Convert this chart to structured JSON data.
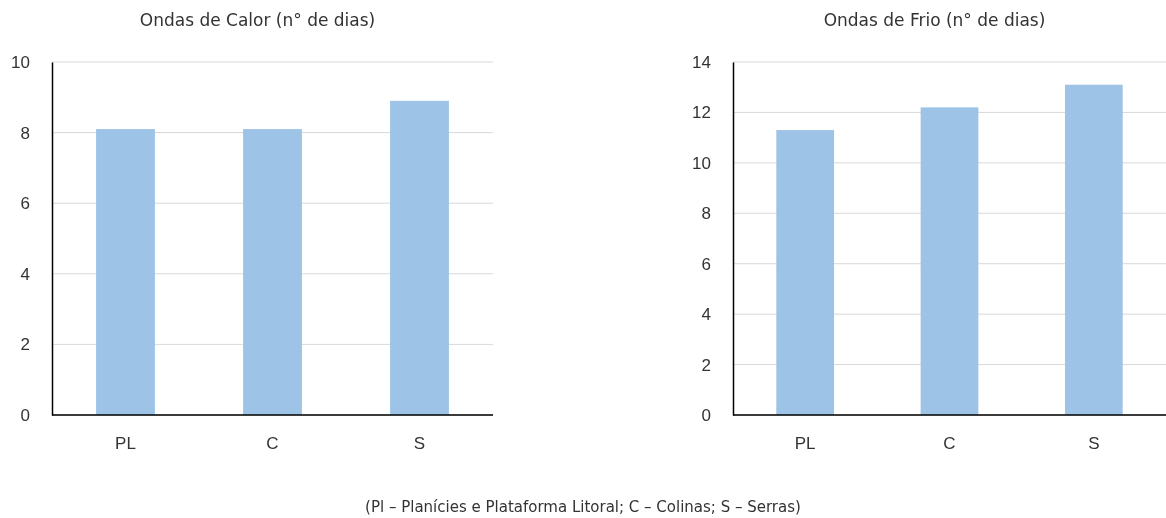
{
  "chart_data": [
    {
      "type": "bar",
      "title": "Ondas de Calor (n° de dias)",
      "categories": [
        "PL",
        "C",
        "S"
      ],
      "values": [
        8.1,
        8.1,
        8.9
      ],
      "color": "#9dc3e6",
      "ylim": [
        0,
        10
      ],
      "yticks": [
        0,
        2,
        4,
        6,
        8,
        10
      ],
      "grid": "y",
      "annotations": [
        "(Pl – Planícies e Plataforma Litoral; C – Colinas; S – Serras)"
      ]
    },
    {
      "type": "bar",
      "title": "Ondas de Frio (n° de dias)",
      "categories": [
        "PL",
        "C",
        "S"
      ],
      "values": [
        11.3,
        12.2,
        13.1
      ],
      "color": "#9dc3e6",
      "ylim": [
        0,
        14
      ],
      "yticks": [
        0,
        2,
        4,
        6,
        8,
        10,
        12,
        14
      ],
      "grid": "y"
    }
  ]
}
